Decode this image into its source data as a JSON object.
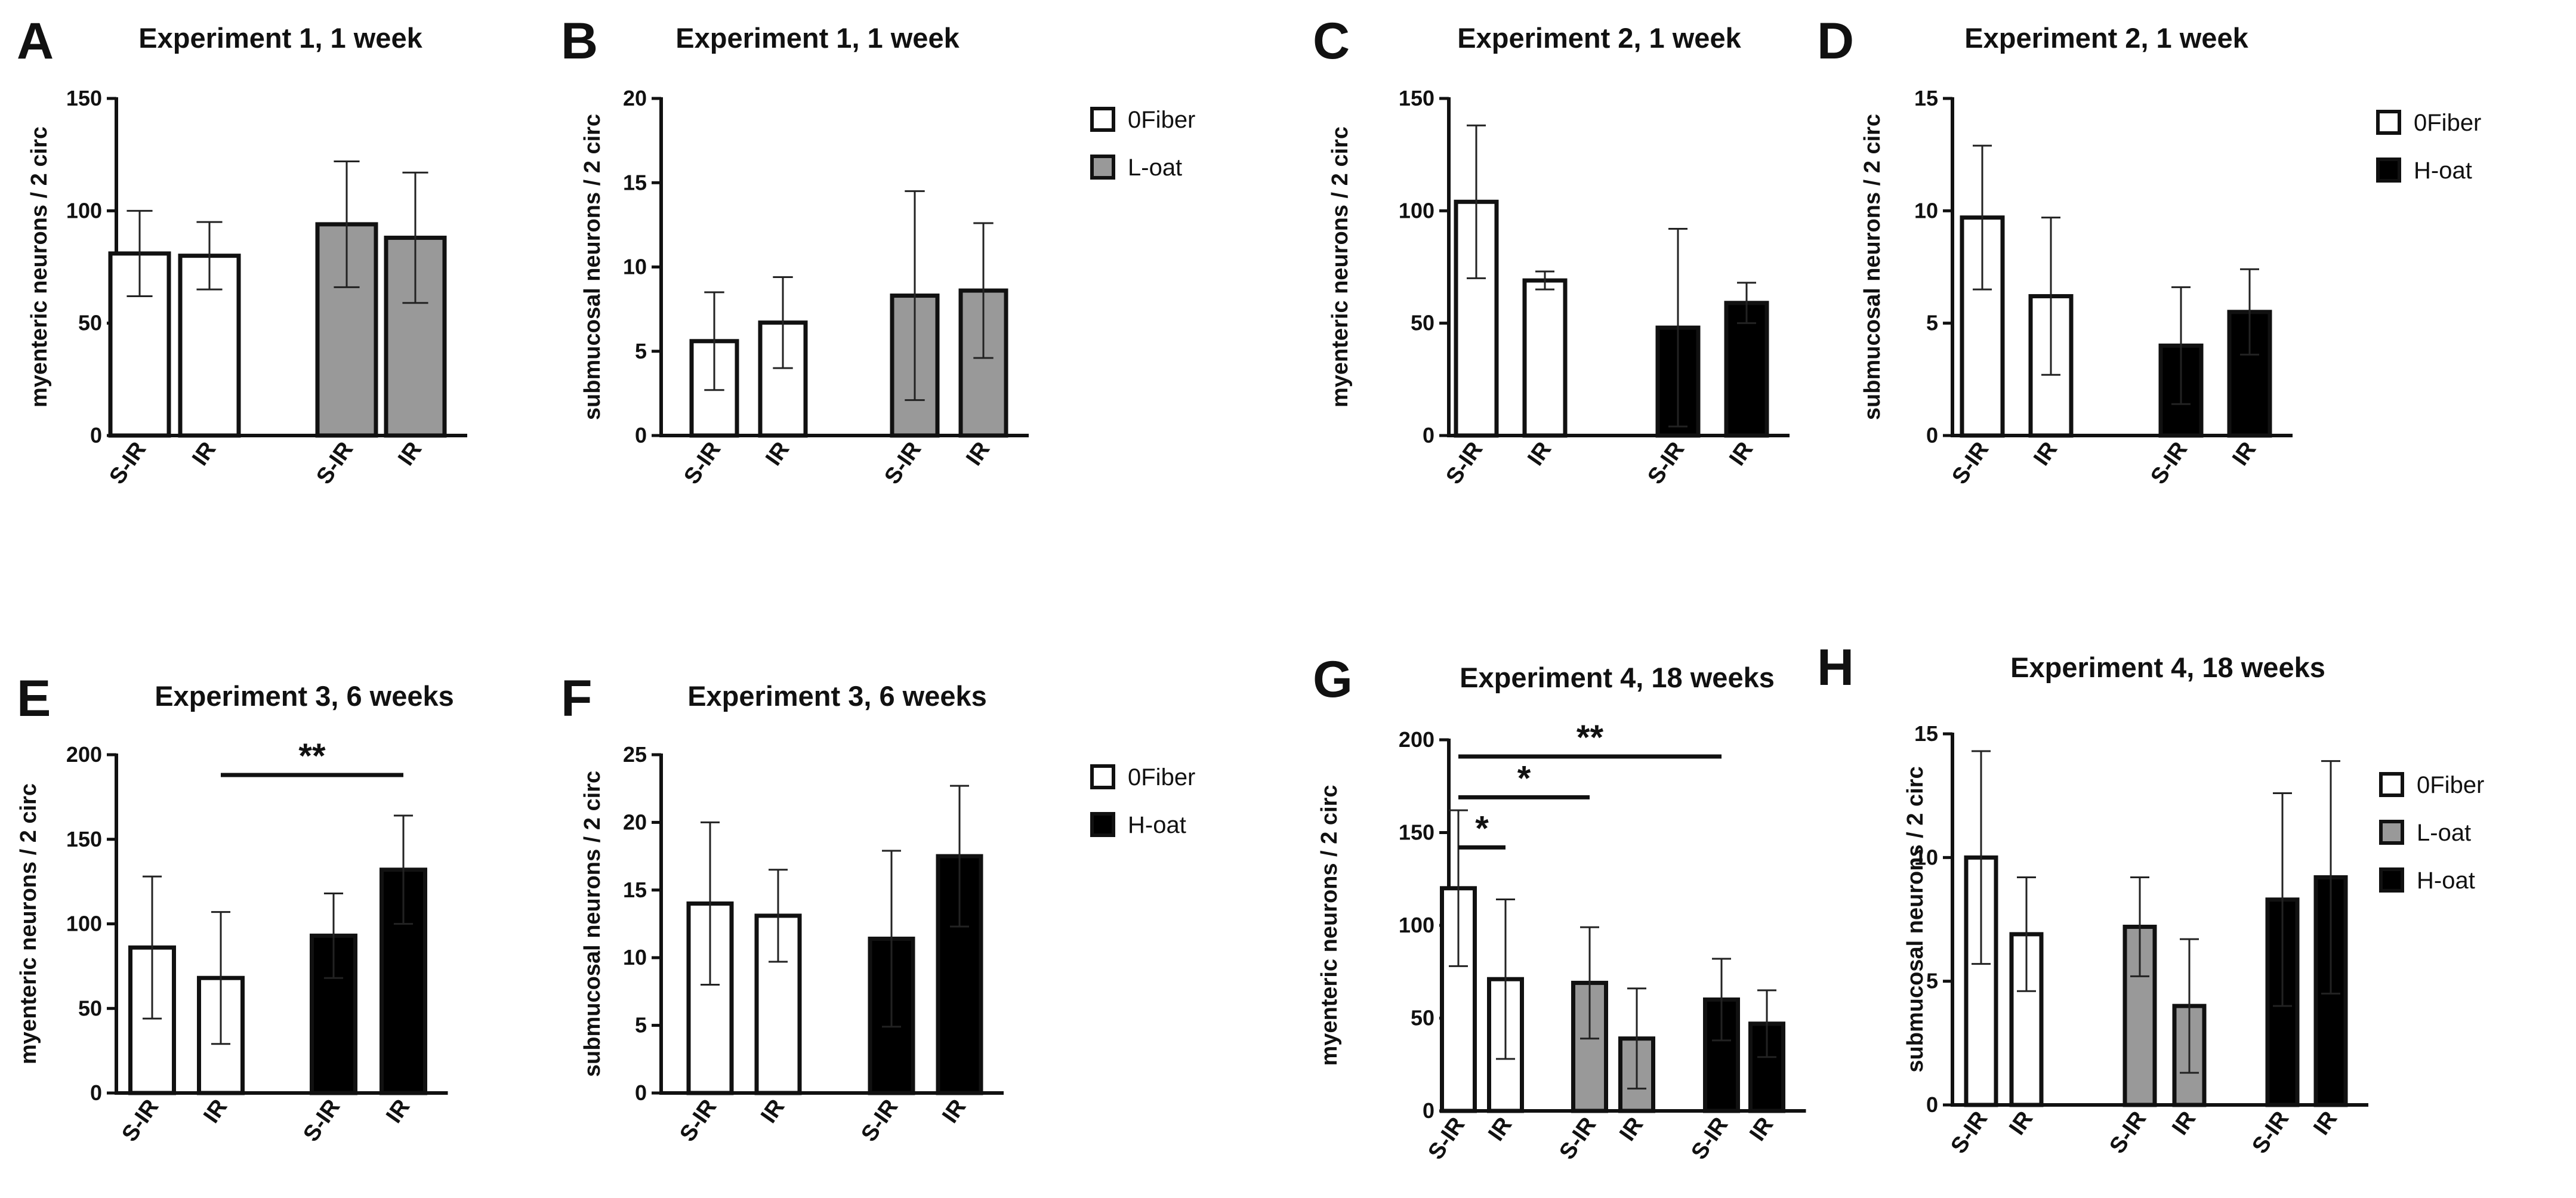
{
  "legends": [
    {
      "id": "legend-ab",
      "entries": [
        {
          "label": "0Fiber",
          "color": "#ffffff"
        },
        {
          "label": "L-oat",
          "color": "#999999"
        }
      ]
    },
    {
      "id": "legend-cd",
      "entries": [
        {
          "label": "0Fiber",
          "color": "#ffffff"
        },
        {
          "label": "H-oat",
          "color": "#000000"
        }
      ]
    },
    {
      "id": "legend-ef",
      "entries": [
        {
          "label": "0Fiber",
          "color": "#ffffff"
        },
        {
          "label": "H-oat",
          "color": "#000000"
        }
      ]
    },
    {
      "id": "legend-gh",
      "entries": [
        {
          "label": "0Fiber",
          "color": "#ffffff"
        },
        {
          "label": "L-oat",
          "color": "#999999"
        },
        {
          "label": "H-oat",
          "color": "#000000"
        }
      ]
    }
  ],
  "chart_data": [
    {
      "panel": "A",
      "type": "bar",
      "title": "Experiment 1, 1 week",
      "ylabel": "myenteric neurons / 2 circ",
      "ylim": [
        0,
        150
      ],
      "yticks": [
        0,
        50,
        100,
        150
      ],
      "categories": [
        "S-IR",
        "IR",
        "S-IR",
        "IR"
      ],
      "groups": [
        "0Fiber",
        "0Fiber",
        "L-oat",
        "L-oat"
      ],
      "colors": [
        "#ffffff",
        "#ffffff",
        "#999999",
        "#999999"
      ],
      "values": [
        81,
        80,
        94,
        88
      ],
      "errors": [
        19,
        15,
        28,
        29
      ],
      "significance": []
    },
    {
      "panel": "B",
      "type": "bar",
      "title": "Experiment 1, 1 week",
      "ylabel": "submucosal neurons / 2 circ",
      "ylim": [
        0,
        20
      ],
      "yticks": [
        0,
        5,
        10,
        15,
        20
      ],
      "categories": [
        "S-IR",
        "IR",
        "S-IR",
        "IR"
      ],
      "groups": [
        "0Fiber",
        "0Fiber",
        "L-oat",
        "L-oat"
      ],
      "colors": [
        "#ffffff",
        "#ffffff",
        "#999999",
        "#999999"
      ],
      "values": [
        5.6,
        6.7,
        8.3,
        8.6
      ],
      "errors": [
        2.9,
        2.7,
        6.2,
        4.0
      ],
      "significance": []
    },
    {
      "panel": "C",
      "type": "bar",
      "title": "Experiment 2, 1 week",
      "ylabel": "myenteric neurons / 2 circ",
      "ylim": [
        0,
        150
      ],
      "yticks": [
        0,
        50,
        100,
        150
      ],
      "categories": [
        "S-IR",
        "IR",
        "S-IR",
        "IR"
      ],
      "groups": [
        "0Fiber",
        "0Fiber",
        "H-oat",
        "H-oat"
      ],
      "colors": [
        "#ffffff",
        "#ffffff",
        "#000000",
        "#000000"
      ],
      "values": [
        104,
        69,
        48,
        59
      ],
      "errors": [
        34,
        4,
        44,
        9
      ],
      "significance": []
    },
    {
      "panel": "D",
      "type": "bar",
      "title": "Experiment 2, 1 week",
      "ylabel": "submucosal neurons / 2 circ",
      "ylim": [
        0,
        15
      ],
      "yticks": [
        0,
        5,
        10,
        15
      ],
      "categories": [
        "S-IR",
        "IR",
        "S-IR",
        "IR"
      ],
      "groups": [
        "0Fiber",
        "0Fiber",
        "H-oat",
        "H-oat"
      ],
      "colors": [
        "#ffffff",
        "#ffffff",
        "#000000",
        "#000000"
      ],
      "values": [
        9.7,
        6.2,
        4.0,
        5.5
      ],
      "errors": [
        3.2,
        3.5,
        2.6,
        1.9
      ],
      "significance": []
    },
    {
      "panel": "E",
      "type": "bar",
      "title": "Experiment 3, 6 weeks",
      "ylabel": "myenteric neurons / 2 circ",
      "ylim": [
        0,
        200
      ],
      "yticks": [
        0,
        50,
        100,
        150,
        200
      ],
      "categories": [
        "S-IR",
        "IR",
        "S-IR",
        "IR"
      ],
      "groups": [
        "0Fiber",
        "0Fiber",
        "H-oat",
        "H-oat"
      ],
      "colors": [
        "#ffffff",
        "#ffffff",
        "#000000",
        "#000000"
      ],
      "values": [
        86,
        68,
        93,
        132
      ],
      "errors": [
        42,
        39,
        25,
        32
      ],
      "significance": [
        {
          "from": 1,
          "to": 3,
          "y": 188,
          "label": "**"
        }
      ]
    },
    {
      "panel": "F",
      "type": "bar",
      "title": "Experiment 3, 6 weeks",
      "ylabel": "submucosal neurons / 2 circ",
      "ylim": [
        0,
        25
      ],
      "yticks": [
        0,
        5,
        10,
        15,
        20,
        25
      ],
      "categories": [
        "S-IR",
        "IR",
        "S-IR",
        "IR"
      ],
      "groups": [
        "0Fiber",
        "0Fiber",
        "H-oat",
        "H-oat"
      ],
      "colors": [
        "#ffffff",
        "#ffffff",
        "#000000",
        "#000000"
      ],
      "values": [
        14,
        13.1,
        11.4,
        17.5
      ],
      "errors": [
        6,
        3.4,
        6.5,
        5.2
      ],
      "significance": []
    },
    {
      "panel": "G",
      "type": "bar",
      "title": "Experiment 4, 18 weeks",
      "ylabel": "myenteric neurons / 2 circ",
      "ylim": [
        0,
        200
      ],
      "yticks": [
        0,
        50,
        100,
        150,
        200
      ],
      "categories": [
        "S-IR",
        "IR",
        "S-IR",
        "IR",
        "S-IR",
        "IR"
      ],
      "groups": [
        "0Fiber",
        "0Fiber",
        "L-oat",
        "L-oat",
        "H-oat",
        "H-oat"
      ],
      "colors": [
        "#ffffff",
        "#ffffff",
        "#999999",
        "#999999",
        "#000000",
        "#000000"
      ],
      "values": [
        120,
        71,
        69,
        39,
        60,
        47
      ],
      "errors": [
        42,
        43,
        30,
        27,
        22,
        18
      ],
      "significance": [
        {
          "from": 0,
          "to": 1,
          "y": 142,
          "label": "*"
        },
        {
          "from": 0,
          "to": 2,
          "y": 169,
          "label": "*"
        },
        {
          "from": 0,
          "to": 4,
          "y": 191,
          "label": "**"
        }
      ]
    },
    {
      "panel": "H",
      "type": "bar",
      "title": "Experiment 4, 18 weeks",
      "ylabel": "submucosal neurons / 2 circ",
      "ylim": [
        0,
        15
      ],
      "yticks": [
        0,
        5,
        10,
        15
      ],
      "categories": [
        "S-IR",
        "IR",
        "S-IR",
        "IR",
        "S-IR",
        "IR"
      ],
      "groups": [
        "0Fiber",
        "0Fiber",
        "L-oat",
        "L-oat",
        "H-oat",
        "H-oat"
      ],
      "colors": [
        "#ffffff",
        "#ffffff",
        "#999999",
        "#999999",
        "#000000",
        "#000000"
      ],
      "values": [
        10,
        6.9,
        7.2,
        4.0,
        8.3,
        9.2
      ],
      "errors": [
        4.3,
        2.3,
        2.0,
        2.7,
        4.3,
        4.7
      ],
      "significance": []
    }
  ]
}
